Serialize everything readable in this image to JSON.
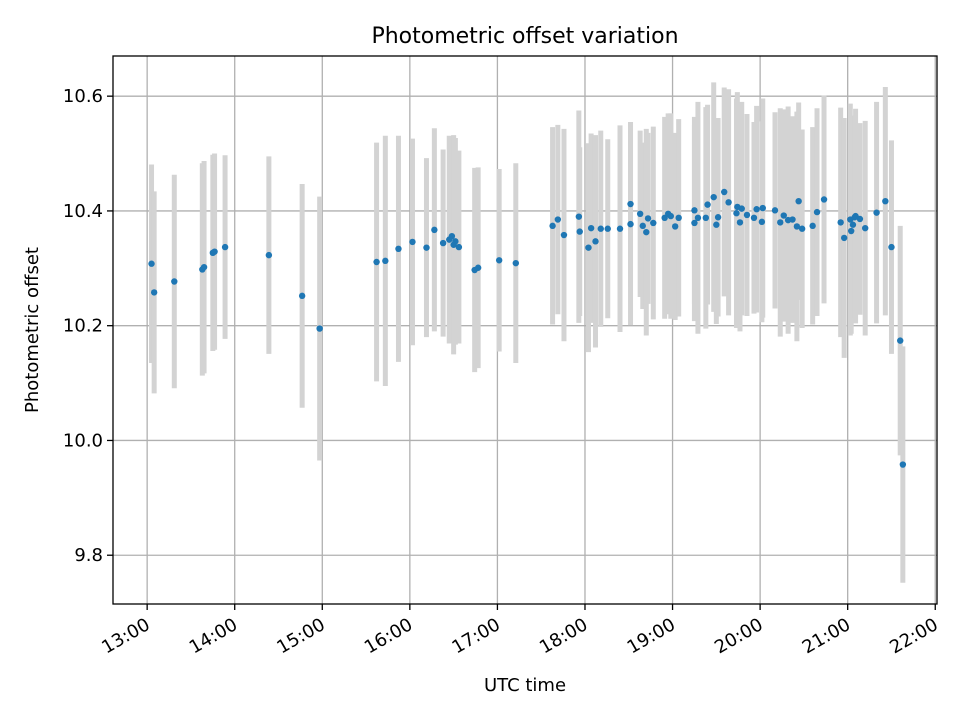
{
  "chart_data": {
    "type": "scatter",
    "title": "Photometric offset variation",
    "xlabel": "UTC time",
    "ylabel": "Photometric offset",
    "x_unit": "hours UTC",
    "xlim": [
      12.61,
      22.02
    ],
    "ylim": [
      9.715,
      10.67
    ],
    "x_ticks": [
      13,
      14,
      15,
      16,
      17,
      18,
      19,
      20,
      21,
      22
    ],
    "x_tick_labels": [
      "13:00",
      "14:00",
      "15:00",
      "16:00",
      "17:00",
      "18:00",
      "19:00",
      "20:00",
      "21:00",
      "22:00"
    ],
    "y_ticks": [
      9.8,
      10.0,
      10.2,
      10.4,
      10.6
    ],
    "y_tick_labels": [
      "9.8",
      "10.0",
      "10.2",
      "10.4",
      "10.6"
    ],
    "grid": true,
    "point_color": "#1f77b4",
    "errorbar_color": "#d3d3d3",
    "series": [
      {
        "x": [
          13.05,
          13.08,
          13.31,
          13.63,
          13.65,
          13.75,
          13.77,
          13.89,
          14.39,
          14.77,
          14.97,
          15.62,
          15.72,
          15.87,
          16.03,
          16.19,
          16.28,
          16.38,
          16.45,
          16.48,
          16.5,
          16.52,
          16.56,
          16.74,
          16.78,
          17.02,
          17.21,
          17.63,
          17.69,
          17.76,
          17.93,
          17.94,
          18.04,
          18.07,
          18.12,
          18.18,
          18.26,
          18.4,
          18.52,
          18.52,
          18.63,
          18.66,
          18.7,
          18.72,
          18.78,
          18.91,
          18.95,
          18.98,
          19.03,
          19.07,
          19.25,
          19.25,
          19.29,
          19.38,
          19.4,
          19.47,
          19.5,
          19.52,
          19.59,
          19.64,
          19.73,
          19.74,
          19.77,
          19.79,
          19.85,
          19.93,
          19.96,
          20.02,
          20.03,
          20.17,
          20.23,
          20.27,
          20.32,
          20.37,
          20.42,
          20.44,
          20.48,
          20.6,
          20.65,
          20.73,
          20.92,
          20.96,
          21.03,
          21.04,
          21.06,
          21.08,
          21.09,
          21.14,
          21.2,
          21.33,
          21.43,
          21.5,
          21.6,
          21.63
        ],
        "y": [
          10.308,
          10.258,
          10.277,
          10.298,
          10.302,
          10.327,
          10.329,
          10.337,
          10.323,
          10.252,
          10.195,
          10.311,
          10.313,
          10.334,
          10.346,
          10.336,
          10.367,
          10.344,
          10.35,
          10.356,
          10.341,
          10.347,
          10.337,
          10.297,
          10.301,
          10.314,
          10.309,
          10.374,
          10.385,
          10.358,
          10.39,
          10.364,
          10.336,
          10.37,
          10.347,
          10.369,
          10.369,
          10.369,
          10.377,
          10.412,
          10.395,
          10.374,
          10.363,
          10.387,
          10.379,
          10.388,
          10.395,
          10.391,
          10.373,
          10.388,
          10.401,
          10.379,
          10.388,
          10.388,
          10.411,
          10.424,
          10.376,
          10.389,
          10.433,
          10.415,
          10.396,
          10.407,
          10.38,
          10.404,
          10.393,
          10.388,
          10.403,
          10.381,
          10.405,
          10.401,
          10.38,
          10.392,
          10.384,
          10.385,
          10.373,
          10.417,
          10.369,
          10.374,
          10.398,
          10.42,
          10.38,
          10.353,
          10.385,
          10.365,
          10.376,
          10.389,
          10.391,
          10.386,
          10.37,
          10.397,
          10.417,
          10.337,
          10.174,
          9.958
        ],
        "err": [
          0.173,
          0.176,
          0.186,
          0.185,
          0.185,
          0.171,
          0.171,
          0.16,
          0.172,
          0.195,
          0.23,
          0.208,
          0.218,
          0.197,
          0.18,
          0.156,
          0.177,
          0.163,
          0.181,
          0.167,
          0.191,
          0.18,
          0.168,
          0.178,
          0.175,
          0.159,
          0.174,
          0.172,
          0.165,
          0.185,
          0.185,
          0.147,
          0.182,
          0.165,
          0.185,
          0.171,
          0.156,
          0.18,
          0.176,
          0.143,
          0.145,
          0.145,
          0.18,
          0.149,
          0.168,
          0.176,
          0.175,
          0.179,
          0.163,
          0.172,
          0.163,
          0.171,
          0.202,
          0.193,
          0.174,
          0.2,
          0.173,
          0.173,
          0.182,
          0.197,
          0.2,
          0.2,
          0.19,
          0.186,
          0.176,
          0.167,
          0.18,
          0.175,
          0.191,
          0.171,
          0.199,
          0.185,
          0.198,
          0.18,
          0.2,
          0.172,
          0.173,
          0.172,
          0.181,
          0.181,
          0.2,
          0.209,
          0.202,
          0.179,
          0.163,
          0.177,
          0.187,
          0.167,
          0.187,
          0.193,
          0.199,
          0.186,
          0.2,
          0.206
        ]
      }
    ]
  }
}
